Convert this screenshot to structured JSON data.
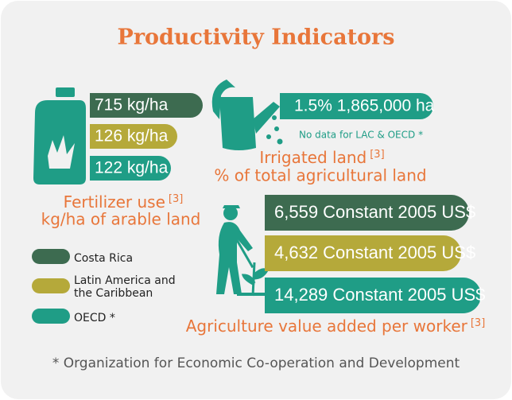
{
  "title": "Productivity Indicators",
  "fertilizer": {
    "values": [
      "715 kg/ha",
      "126 kg/ha",
      "122 kg/ha"
    ],
    "label": "Fertilizer use",
    "ref": "[3]",
    "sublabel": "kg/ha of arable land"
  },
  "irrigation": {
    "value": "1.5% 1,865,000 ha",
    "note": "No data for LAC & OECD *",
    "label": "Irrigated land",
    "ref": "[3]",
    "sublabel": "% of total agricultural land"
  },
  "agriculture": {
    "values": [
      "6,559 Constant 2005 US$",
      "4,632 Constant 2005 US$",
      "14,289 Constant 2005 US$"
    ],
    "label": "Agriculture value added per worker",
    "ref": "[3]"
  },
  "legend": [
    {
      "lines": [
        "Costa Rica"
      ],
      "color": "#3d6b50"
    },
    {
      "lines": [
        "Latin America and",
        "the Caribbean"
      ],
      "color": "#b5a93a"
    },
    {
      "lines": [
        "OECD *"
      ],
      "color": "#1f9d86"
    }
  ],
  "footnote": "* Organization for Economic Co-operation and Development"
}
